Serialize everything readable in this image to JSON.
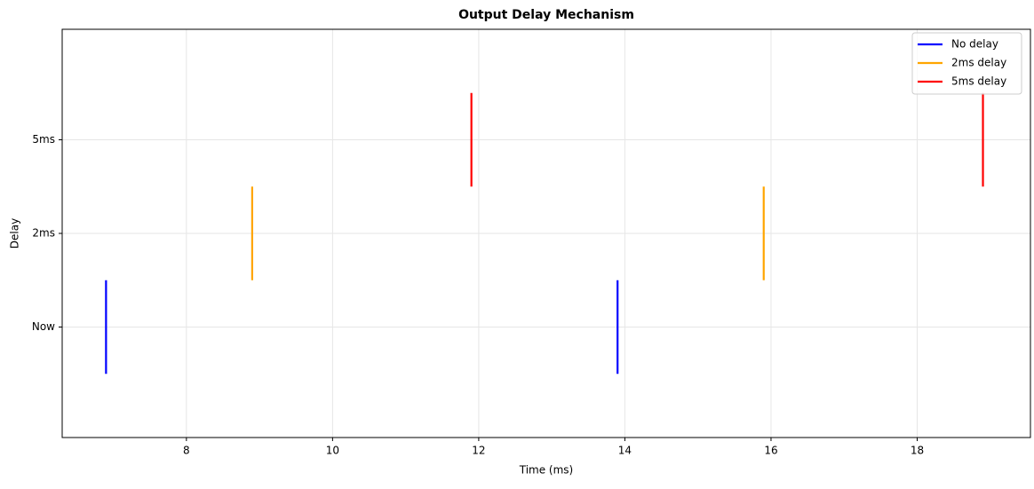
{
  "chart_data": {
    "type": "eventplot",
    "title": "Output Delay Mechanism",
    "x_label": "Time (ms)",
    "y_label": "Delay",
    "series": [
      {
        "name": "No delay",
        "color": "#0000ff",
        "x": [
          6.9,
          13.9
        ],
        "offset": 0
      },
      {
        "name": "2ms delay",
        "color": "#ffa500",
        "x": [
          8.9,
          15.9
        ],
        "offset": 1
      },
      {
        "name": "5ms delay",
        "color": "#ff0000",
        "x": [
          11.9,
          18.9
        ],
        "offset": 2
      }
    ],
    "line_length": 1,
    "xlim": [
      6.3,
      19.55
    ],
    "xticks": [
      8,
      10,
      12,
      14,
      16,
      18
    ],
    "ylim": [
      -1.18,
      3.18
    ],
    "yticks": [
      {
        "value": 0,
        "label": "Now"
      },
      {
        "value": 1,
        "label": "2ms"
      },
      {
        "value": 2,
        "label": "5ms"
      }
    ],
    "grid": true,
    "legend": "upper right"
  }
}
